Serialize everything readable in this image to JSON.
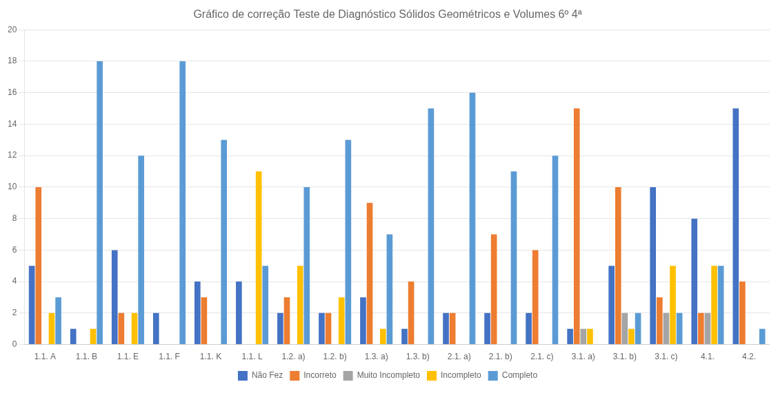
{
  "chart_data": {
    "type": "bar",
    "title": "Gráfico de correção Teste de Diagnóstico Sólidos Geométricos e Volumes 6º 4ª",
    "categories": [
      "1.1. A",
      "1.1. B",
      "1.1. E",
      "1.1. F",
      "1.1. K",
      "1.1. L",
      "1.2. a)",
      "1.2. b)",
      "1.3. a)",
      "1.3. b)",
      "2.1. a)",
      "2.1. b)",
      "2.1. c)",
      "3.1. a)",
      "3.1. b)",
      "3.1. c)",
      "4.1.",
      "4.2."
    ],
    "series": [
      {
        "name": "Não Fez",
        "color": "#4472c4",
        "values": [
          5,
          1,
          6,
          2,
          4,
          4,
          2,
          2,
          3,
          1,
          2,
          2,
          2,
          1,
          5,
          10,
          8,
          15
        ]
      },
      {
        "name": "Incorreto",
        "color": "#ed7d31",
        "values": [
          10,
          0,
          2,
          0,
          3,
          0,
          3,
          2,
          9,
          4,
          2,
          7,
          6,
          15,
          10,
          3,
          2,
          4
        ]
      },
      {
        "name": "Muito Incompleto",
        "color": "#a5a5a5",
        "values": [
          0,
          0,
          0,
          0,
          0,
          0,
          0,
          0,
          0,
          0,
          0,
          0,
          0,
          1,
          2,
          2,
          2,
          0
        ]
      },
      {
        "name": "Incompleto",
        "color": "#ffc000",
        "values": [
          2,
          1,
          2,
          0,
          0,
          11,
          5,
          3,
          1,
          0,
          0,
          0,
          0,
          1,
          1,
          5,
          5,
          0
        ]
      },
      {
        "name": "Completo",
        "color": "#5b9bd5",
        "values": [
          3,
          18,
          12,
          18,
          13,
          5,
          10,
          13,
          7,
          15,
          16,
          11,
          12,
          0,
          2,
          2,
          5,
          1
        ]
      }
    ],
    "ylim": [
      0,
      20
    ],
    "yticks": [
      0,
      2,
      4,
      6,
      8,
      10,
      12,
      14,
      16,
      18,
      20
    ],
    "grid": true,
    "legend": "bottom"
  }
}
